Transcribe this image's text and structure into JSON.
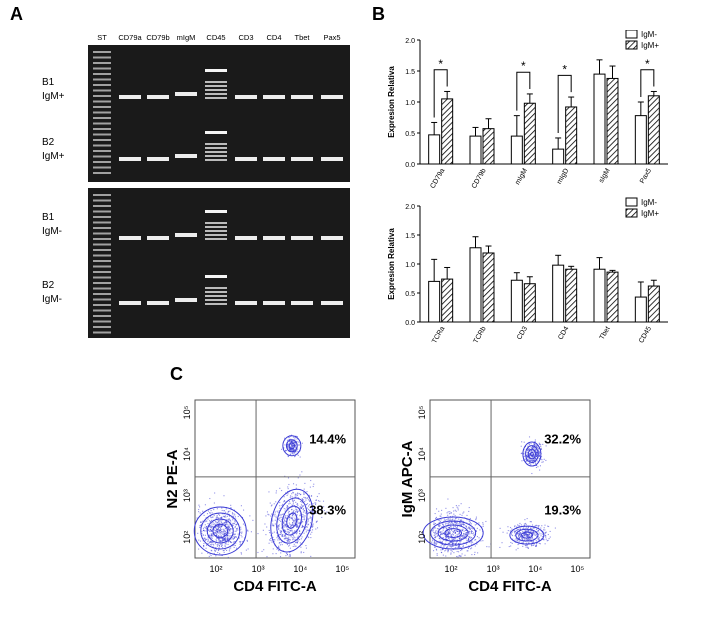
{
  "panel_a": {
    "letter": "A",
    "lanes": [
      "ST",
      "CD79a",
      "CD79b",
      "mIgM",
      "CD45",
      "CD3",
      "CD4",
      "Tbet",
      "Pax5"
    ],
    "rows": [
      {
        "sample": "B1",
        "group": "IgM+"
      },
      {
        "sample": "B2",
        "group": "IgM+"
      },
      {
        "sample": "B1",
        "group": "IgM-"
      },
      {
        "sample": "B2",
        "group": "IgM-"
      }
    ]
  },
  "panel_b": {
    "letter": "B"
  },
  "panel_c": {
    "letter": "C"
  },
  "chart_data": [
    {
      "type": "bar",
      "ylabel": "Expresion Relativa",
      "ylim": [
        0,
        2.0
      ],
      "yticks": [
        "0.0",
        "0.5",
        "1.0",
        "1.5",
        "2.0"
      ],
      "categories": [
        "CD79a",
        "CD79b",
        "mIgM",
        "mIgD",
        "sIgM",
        "Pax5"
      ],
      "series": [
        {
          "name": "IgM-",
          "values": [
            0.47,
            0.45,
            0.45,
            0.24,
            1.45,
            0.78
          ],
          "errors": [
            0.2,
            0.14,
            0.33,
            0.18,
            0.23,
            0.22
          ]
        },
        {
          "name": "IgM+",
          "values": [
            1.05,
            0.57,
            0.98,
            0.92,
            1.38,
            1.1
          ],
          "errors": [
            0.12,
            0.16,
            0.15,
            0.16,
            0.2,
            0.07
          ]
        }
      ],
      "significance": [
        "*",
        "",
        "*",
        "*",
        "",
        "*"
      ],
      "legend": "top-right"
    },
    {
      "type": "bar",
      "ylabel": "Expresion Relativa",
      "ylim": [
        0,
        2.0
      ],
      "yticks": [
        "0.0",
        "0.5",
        "1.0",
        "1.5",
        "2.0"
      ],
      "categories": [
        "TCRa",
        "TCRb",
        "CD3",
        "CD4",
        "Tbet",
        "CD45"
      ],
      "series": [
        {
          "name": "IgM-",
          "values": [
            0.7,
            1.28,
            0.72,
            0.98,
            0.91,
            0.43
          ],
          "errors": [
            0.38,
            0.19,
            0.13,
            0.17,
            0.2,
            0.26
          ]
        },
        {
          "name": "IgM+",
          "values": [
            0.74,
            1.19,
            0.66,
            0.91,
            0.86,
            0.62
          ],
          "errors": [
            0.2,
            0.12,
            0.12,
            0.05,
            0.03,
            0.1
          ]
        }
      ],
      "legend": "top-right"
    },
    {
      "type": "scatter",
      "xlabel": "CD4 FITC-A",
      "ylabel": "N2 PE-A",
      "xticks": [
        "10²",
        "10³",
        "10⁴",
        "10⁵"
      ],
      "yticks": [
        "10²",
        "10³",
        "10⁴",
        "10⁵"
      ],
      "quadrant_percentages": {
        "upper_right": "14.4%",
        "lower_right": "38.3%"
      }
    },
    {
      "type": "scatter",
      "xlabel": "CD4 FITC-A",
      "ylabel": "IgM APC-A",
      "xticks": [
        "10²",
        "10³",
        "10⁴",
        "10⁵"
      ],
      "yticks": [
        "10²",
        "10³",
        "10⁴",
        "10⁵"
      ],
      "quadrant_percentages": {
        "upper_right": "32.2%",
        "lower_right": "19.3%"
      }
    }
  ],
  "colors": {
    "flow": "#3b3bd6",
    "bar_outline": "#000000"
  }
}
